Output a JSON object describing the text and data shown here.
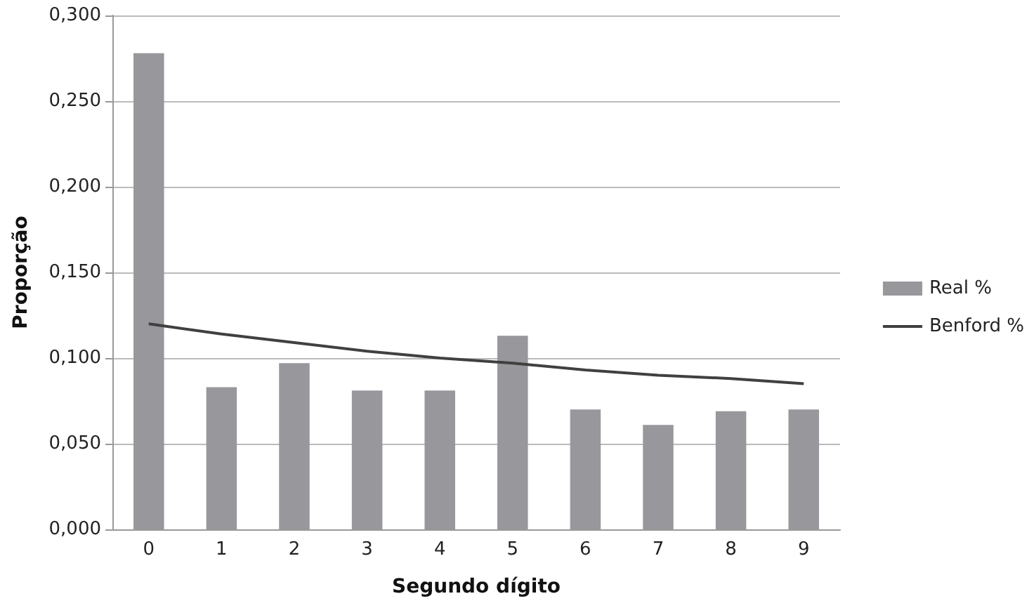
{
  "chart_data": {
    "type": "bar",
    "xlabel": "Segundo dígito",
    "ylabel": "Proporção",
    "categories": [
      "0",
      "1",
      "2",
      "3",
      "4",
      "5",
      "6",
      "7",
      "8",
      "9"
    ],
    "series": [
      {
        "name": "Real %",
        "color": "#98979c",
        "values": [
          0.278,
          0.083,
          0.097,
          0.081,
          0.081,
          0.113,
          0.07,
          0.061,
          0.069,
          0.07
        ]
      },
      {
        "name": "Benford %",
        "type": "line",
        "color": "#404040",
        "values": [
          0.12,
          0.114,
          0.109,
          0.104,
          0.1,
          0.097,
          0.093,
          0.09,
          0.088,
          0.085
        ]
      }
    ],
    "ylim": [
      0,
      0.3
    ],
    "yticks": [
      {
        "value": 0,
        "label": "0,000"
      },
      {
        "value": 0.05,
        "label": "0,050"
      },
      {
        "value": 0.1,
        "label": "0,100"
      },
      {
        "value": 0.15,
        "label": "0,150"
      },
      {
        "value": 0.2,
        "label": "0,200"
      },
      {
        "value": 0.25,
        "label": "0,250"
      },
      {
        "value": 0.3,
        "label": "0,300"
      }
    ],
    "grid": "y",
    "legend": "right",
    "marker": "none"
  }
}
